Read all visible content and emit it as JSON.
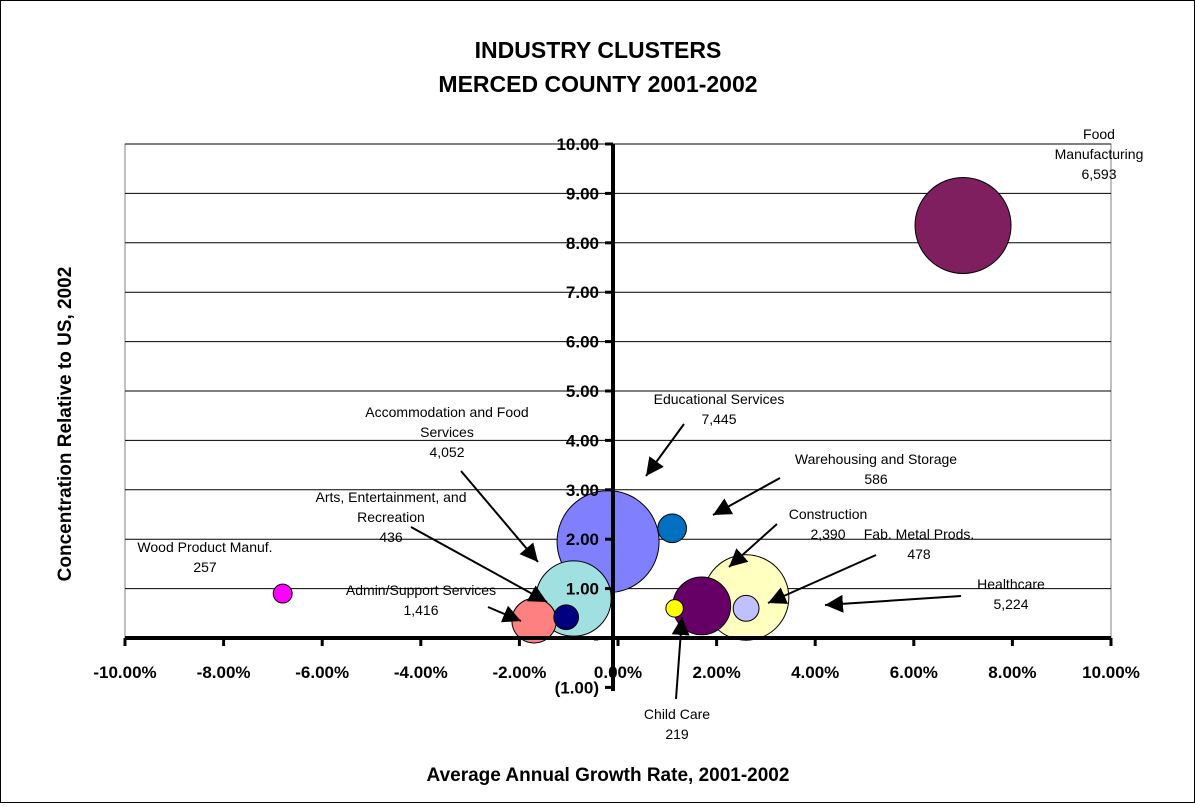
{
  "chart_data": {
    "type": "bubble",
    "title": [
      "INDUSTRY CLUSTERS",
      "MERCED COUNTY 2001-2002"
    ],
    "xlabel": "Average Annual Growth Rate, 2001-2002",
    "ylabel": "Concentration Relative to US, 2002",
    "xlim": [
      -0.1,
      0.1
    ],
    "ylim": [
      -1.0,
      10.0
    ],
    "x_ticks": [
      "-10.00%",
      "-8.00%",
      "-6.00%",
      "-4.00%",
      "-2.00%",
      "0.00%",
      "2.00%",
      "4.00%",
      "6.00%",
      "8.00%",
      "10.00%"
    ],
    "y_ticks": [
      "(1.00)",
      "-",
      "1.00",
      "2.00",
      "3.00",
      "4.00",
      "5.00",
      "6.00",
      "7.00",
      "8.00",
      "9.00",
      "10.00"
    ],
    "grid": "horizontal",
    "series": [
      {
        "name": "Food Manufacturing",
        "label_lines": [
          "Food",
          "Manufacturing",
          "6,593"
        ],
        "x": 0.071,
        "y": 8.35,
        "size": 6593,
        "color": "#7f1f5f"
      },
      {
        "name": "Educational Services",
        "label_lines": [
          "Educational Services",
          "7,445"
        ],
        "x": -0.001,
        "y": 1.95,
        "size": 7445,
        "color": "#8080ff"
      },
      {
        "name": "Healthcare",
        "label_lines": [
          "Healthcare",
          "5,224"
        ],
        "x": 0.027,
        "y": 0.82,
        "size": 5224,
        "color": "#ffffc0"
      },
      {
        "name": "Accommodation and Food Services",
        "label_lines": [
          "Accommodation and Food",
          "Services",
          "4,052"
        ],
        "x": -0.008,
        "y": 0.8,
        "size": 4052,
        "color": "#a0e0e0"
      },
      {
        "name": "Construction",
        "label_lines": [
          "Construction",
          "2,390"
        ],
        "x": 0.018,
        "y": 0.65,
        "size": 2390,
        "color": "#660066"
      },
      {
        "name": "Admin/Support Services",
        "label_lines": [
          "Admin/Support Services",
          "1,416"
        ],
        "x": -0.016,
        "y": 0.35,
        "size": 1416,
        "color": "#ff8080"
      },
      {
        "name": "Warehousing and Storage",
        "label_lines": [
          "Warehousing and Storage",
          "586"
        ],
        "x": 0.012,
        "y": 2.22,
        "size": 586,
        "color": "#0070c0"
      },
      {
        "name": "Fab. Metal Prods.",
        "label_lines": [
          "Fab. Metal Prods.",
          "478"
        ],
        "x": 0.027,
        "y": 0.6,
        "size": 478,
        "color": "#c0c0ff"
      },
      {
        "name": "Arts, Entertainment, and Recreation",
        "label_lines": [
          "Arts, Entertainment, and",
          "Recreation",
          "436"
        ],
        "x": -0.0095,
        "y": 0.42,
        "size": 436,
        "color": "#000080"
      },
      {
        "name": "Wood Product Manuf.",
        "label_lines": [
          "Wood Product Manuf.",
          "257"
        ],
        "x": -0.067,
        "y": 0.9,
        "size": 257,
        "color": "#ff00ff"
      },
      {
        "name": "Child Care",
        "label_lines": [
          "Child Care",
          "219"
        ],
        "x": 0.0125,
        "y": 0.6,
        "size": 219,
        "color": "#ffff00"
      }
    ]
  }
}
